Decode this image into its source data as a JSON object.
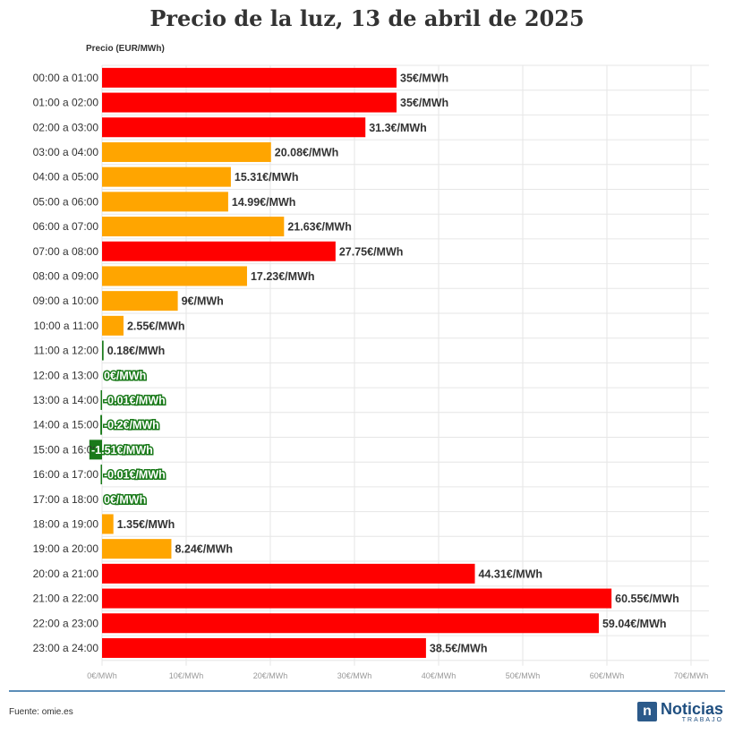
{
  "chart_data": {
    "type": "bar",
    "orientation": "horizontal",
    "title": "Precio de la luz, 13 de abril de 2025",
    "ylabel": "Precio (EUR/MWh)",
    "xlim": [
      0,
      70
    ],
    "x_ticks": [
      "0€/MWh",
      "10€/MWh",
      "20€/MWh",
      "30€/MWh",
      "40€/MWh",
      "50€/MWh",
      "60€/MWh",
      "70€/MWh"
    ],
    "grid": true,
    "categories": [
      "00:00 a 01:00",
      "01:00 a 02:00",
      "02:00 a 03:00",
      "03:00 a 04:00",
      "04:00 a 05:00",
      "05:00 a 06:00",
      "06:00 a 07:00",
      "07:00 a 08:00",
      "08:00 a 09:00",
      "09:00 a 10:00",
      "10:00 a 11:00",
      "11:00 a 12:00",
      "12:00 a 13:00",
      "13:00 a 14:00",
      "14:00 a 15:00",
      "15:00 a 16:00",
      "16:00 a 17:00",
      "17:00 a 18:00",
      "18:00 a 19:00",
      "19:00 a 20:00",
      "20:00 a 21:00",
      "21:00 a 22:00",
      "22:00 a 23:00",
      "23:00 a 24:00"
    ],
    "values": [
      35,
      35,
      31.3,
      20.08,
      15.31,
      14.99,
      21.63,
      27.75,
      17.23,
      9,
      2.55,
      0.18,
      0,
      -0.01,
      -0.2,
      -1.51,
      -0.01,
      0,
      1.35,
      8.24,
      44.31,
      60.55,
      59.04,
      38.5
    ],
    "value_labels": [
      "35€/MWh",
      "35€/MWh",
      "31.3€/MWh",
      "20.08€/MWh",
      "15.31€/MWh",
      "14.99€/MWh",
      "21.63€/MWh",
      "27.75€/MWh",
      "17.23€/MWh",
      "9€/MWh",
      "2.55€/MWh",
      "0.18€/MWh",
      "0€/MWh",
      "-0.01€/MWh",
      "-0.2€/MWh",
      "-1.51€/MWh",
      "-0.01€/MWh",
      "0€/MWh",
      "1.35€/MWh",
      "8.24€/MWh",
      "44.31€/MWh",
      "60.55€/MWh",
      "59.04€/MWh",
      "38.5€/MWh"
    ],
    "colors": {
      "high": "#ff0000",
      "medium": "#ffa500",
      "low": "#1a7a1a"
    },
    "bar_colors": [
      "high",
      "high",
      "high",
      "medium",
      "medium",
      "medium",
      "medium",
      "high",
      "medium",
      "medium",
      "medium",
      "low",
      "low",
      "low",
      "low",
      "low",
      "low",
      "low",
      "medium",
      "medium",
      "high",
      "high",
      "high",
      "high"
    ]
  },
  "footer": {
    "source": "Fuente: omie.es",
    "logo_mark": "n",
    "logo_main": "Noticias",
    "logo_sub": "TRABAJO"
  }
}
